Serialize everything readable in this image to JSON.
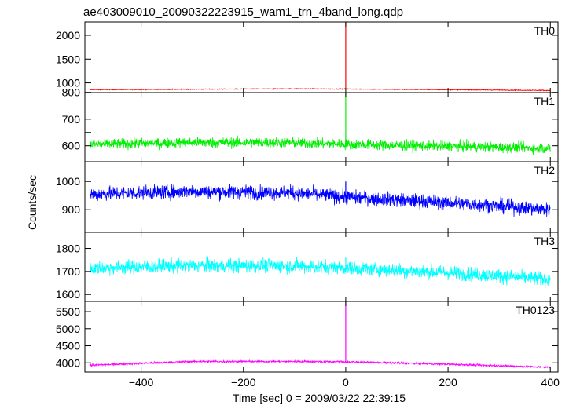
{
  "chart_data": {
    "type": "line",
    "title": "ae403009010_20090322223915_wam1_trn_4band_long.qdp",
    "xlabel": "Time [sec] 0 = 2009/03/22 22:39:15",
    "ylabel": "Counts/sec",
    "xlim": [
      -510,
      415
    ],
    "x_ticks": [
      -400,
      -200,
      0,
      200,
      400
    ],
    "x_tick_labels": [
      "−400",
      "−200",
      "0",
      "200",
      "400"
    ],
    "grid": false,
    "data_x_range": [
      -500,
      400
    ],
    "spike_x": 0,
    "panels": [
      {
        "name": "TH0",
        "color": "#ff0000",
        "ylim": [
          795,
          2280
        ],
        "y_ticks": [
          800,
          1000,
          1500,
          2000
        ],
        "y_tick_labels": [
          "800",
          "1000",
          "1500",
          "2000"
        ],
        "baseline": [
          [
            -500,
            855
          ],
          [
            -300,
            865
          ],
          [
            -100,
            875
          ],
          [
            0,
            870
          ],
          [
            200,
            855
          ],
          [
            400,
            840
          ]
        ],
        "noise": 15,
        "spike": 2280
      },
      {
        "name": "TH1",
        "color": "#00ee00",
        "ylim": [
          540,
          800
        ],
        "y_ticks": [
          600,
          650,
          700
        ],
        "y_tick_labels": [
          "600",
          "",
          "700"
        ],
        "baseline": [
          [
            -500,
            605
          ],
          [
            -300,
            612
          ],
          [
            -100,
            612
          ],
          [
            0,
            605
          ],
          [
            200,
            598
          ],
          [
            400,
            590
          ]
        ],
        "noise": 35,
        "spike": 800
      },
      {
        "name": "TH2",
        "color": "#0000ff",
        "ylim": [
          820,
          1070
        ],
        "y_ticks": [
          900,
          1000
        ],
        "y_tick_labels": [
          "900",
          "1000"
        ],
        "baseline": [
          [
            -500,
            955
          ],
          [
            -300,
            965
          ],
          [
            -100,
            960
          ],
          [
            0,
            945
          ],
          [
            200,
            925
          ],
          [
            400,
            900
          ]
        ],
        "noise": 45,
        "spike": 1000
      },
      {
        "name": "TH3",
        "color": "#00ffff",
        "ylim": [
          1570,
          1870
        ],
        "y_ticks": [
          1600,
          1700,
          1800
        ],
        "y_tick_labels": [
          "1600",
          "1700",
          "1800"
        ],
        "baseline": [
          [
            -500,
            1715
          ],
          [
            -300,
            1725
          ],
          [
            -100,
            1725
          ],
          [
            0,
            1715
          ],
          [
            200,
            1695
          ],
          [
            400,
            1665
          ]
        ],
        "noise": 55,
        "spike": 1760
      },
      {
        "name": "TH0123",
        "color": "#ff00ff",
        "ylim": [
          3730,
          5800
        ],
        "y_ticks": [
          4000,
          4500,
          5000,
          5500
        ],
        "y_tick_labels": [
          "4000",
          "4500",
          "5000",
          "5500"
        ],
        "baseline": [
          [
            -500,
            3930
          ],
          [
            -300,
            4040
          ],
          [
            -100,
            4040
          ],
          [
            0,
            4030
          ],
          [
            200,
            3960
          ],
          [
            400,
            3870
          ]
        ],
        "noise": 55,
        "spike": 5800
      }
    ]
  }
}
